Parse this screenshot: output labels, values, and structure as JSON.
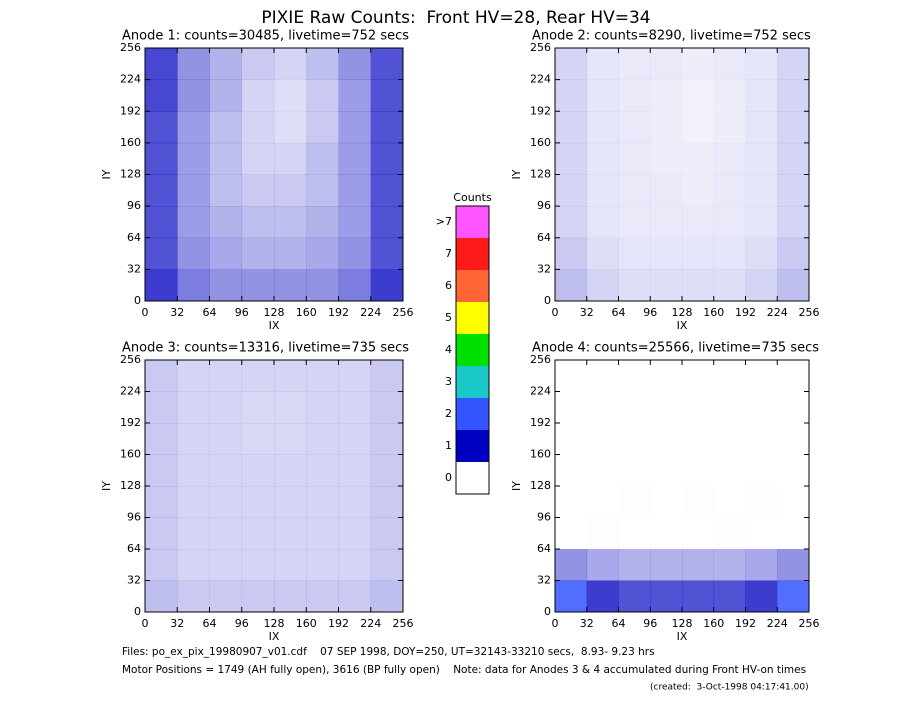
{
  "title": "PIXIE Raw Counts:  Front HV=28, Rear HV=34",
  "chart_data": [
    {
      "type": "heatmap",
      "title": "Anode 1: counts=30485, livetime=752 secs",
      "xlabel": "IX",
      "ylabel": "IY",
      "xlim": [
        0,
        256
      ],
      "ylim": [
        0,
        256
      ],
      "xticks": [
        0,
        32,
        64,
        96,
        128,
        160,
        192,
        224,
        256
      ],
      "yticks": [
        0,
        32,
        64,
        96,
        128,
        160,
        192,
        224,
        256
      ],
      "values": [
        [
          0.9,
          0.6,
          0.5,
          0.5,
          0.5,
          0.5,
          0.6,
          0.9
        ],
        [
          0.8,
          0.5,
          0.4,
          0.35,
          0.35,
          0.4,
          0.5,
          0.8
        ],
        [
          0.8,
          0.45,
          0.35,
          0.3,
          0.3,
          0.35,
          0.45,
          0.8
        ],
        [
          0.8,
          0.45,
          0.3,
          0.25,
          0.25,
          0.3,
          0.45,
          0.8
        ],
        [
          0.8,
          0.45,
          0.3,
          0.2,
          0.2,
          0.3,
          0.45,
          0.8
        ],
        [
          0.8,
          0.45,
          0.3,
          0.2,
          0.15,
          0.25,
          0.45,
          0.8
        ],
        [
          0.85,
          0.5,
          0.35,
          0.2,
          0.15,
          0.25,
          0.45,
          0.8
        ],
        [
          0.85,
          0.5,
          0.35,
          0.25,
          0.2,
          0.3,
          0.5,
          0.8
        ]
      ]
    },
    {
      "type": "heatmap",
      "title": "Anode 2: counts=8290, livetime=752 secs",
      "xlabel": "IX",
      "ylabel": "IY",
      "xlim": [
        0,
        256
      ],
      "ylim": [
        0,
        256
      ],
      "xticks": [
        0,
        32,
        64,
        96,
        128,
        160,
        192,
        224,
        256
      ],
      "yticks": [
        0,
        32,
        64,
        96,
        128,
        160,
        192,
        224,
        256
      ],
      "values": [
        [
          0.3,
          0.2,
          0.15,
          0.15,
          0.15,
          0.15,
          0.2,
          0.3
        ],
        [
          0.25,
          0.15,
          0.12,
          0.12,
          0.12,
          0.12,
          0.15,
          0.25
        ],
        [
          0.2,
          0.12,
          0.1,
          0.1,
          0.1,
          0.1,
          0.12,
          0.2
        ],
        [
          0.2,
          0.12,
          0.1,
          0.1,
          0.08,
          0.1,
          0.12,
          0.2
        ],
        [
          0.2,
          0.12,
          0.1,
          0.08,
          0.08,
          0.1,
          0.12,
          0.2
        ],
        [
          0.2,
          0.12,
          0.1,
          0.08,
          0.06,
          0.08,
          0.12,
          0.2
        ],
        [
          0.2,
          0.12,
          0.1,
          0.08,
          0.06,
          0.08,
          0.12,
          0.2
        ],
        [
          0.2,
          0.12,
          0.1,
          0.1,
          0.08,
          0.1,
          0.12,
          0.2
        ]
      ]
    },
    {
      "type": "heatmap",
      "title": "Anode 3: counts=13316, livetime=735 secs",
      "xlabel": "IX",
      "ylabel": "IY",
      "xlim": [
        0,
        256
      ],
      "ylim": [
        0,
        256
      ],
      "xticks": [
        0,
        32,
        64,
        96,
        128,
        160,
        192,
        224,
        256
      ],
      "yticks": [
        0,
        32,
        64,
        96,
        128,
        160,
        192,
        224,
        256
      ],
      "values": [
        [
          0.3,
          0.25,
          0.25,
          0.25,
          0.25,
          0.25,
          0.25,
          0.3
        ],
        [
          0.25,
          0.2,
          0.2,
          0.2,
          0.2,
          0.2,
          0.2,
          0.25
        ],
        [
          0.25,
          0.2,
          0.2,
          0.2,
          0.2,
          0.2,
          0.2,
          0.25
        ],
        [
          0.25,
          0.2,
          0.2,
          0.2,
          0.2,
          0.2,
          0.2,
          0.25
        ],
        [
          0.25,
          0.2,
          0.2,
          0.2,
          0.2,
          0.2,
          0.2,
          0.25
        ],
        [
          0.25,
          0.2,
          0.2,
          0.18,
          0.18,
          0.2,
          0.2,
          0.25
        ],
        [
          0.25,
          0.2,
          0.2,
          0.18,
          0.18,
          0.2,
          0.2,
          0.25
        ],
        [
          0.25,
          0.2,
          0.2,
          0.2,
          0.2,
          0.2,
          0.2,
          0.25
        ]
      ]
    },
    {
      "type": "heatmap",
      "title": "Anode 4: counts=25566, livetime=735 secs",
      "xlabel": "IX",
      "ylabel": "IY",
      "xlim": [
        0,
        256
      ],
      "ylim": [
        0,
        256
      ],
      "xticks": [
        0,
        32,
        64,
        96,
        128,
        160,
        192,
        224,
        256
      ],
      "yticks": [
        0,
        32,
        64,
        96,
        128,
        160,
        192,
        224,
        256
      ],
      "values": [
        [
          2.5,
          0.9,
          0.8,
          0.8,
          0.8,
          0.8,
          0.9,
          2.5
        ],
        [
          0.5,
          0.4,
          0.35,
          0.35,
          0.35,
          0.35,
          0.4,
          0.5
        ],
        [
          0,
          0.01,
          0,
          0,
          0,
          0.01,
          0,
          0
        ],
        [
          0,
          0,
          0.01,
          0,
          0.01,
          0,
          0.01,
          0
        ],
        [
          0,
          0,
          0,
          0,
          0,
          0,
          0,
          0
        ],
        [
          0,
          0,
          0,
          0,
          0,
          0,
          0,
          0
        ],
        [
          0,
          0,
          0,
          0,
          0,
          0,
          0,
          0
        ],
        [
          0,
          0,
          0,
          0,
          0,
          0,
          0,
          0
        ]
      ]
    }
  ],
  "colorbar": {
    "title": "Counts",
    "levels": [
      0,
      1,
      2,
      3,
      4,
      5,
      6,
      7
    ],
    "overflow_label": ">7",
    "colors": [
      "#ffffff",
      "#0000c0",
      "#3355ff",
      "#1ac8c8",
      "#00e000",
      "#ffff00",
      "#ff6633",
      "#ff1a1a",
      "#ff55ff"
    ]
  },
  "footer": [
    "Files: po_ex_pix_19980907_v01.cdf    07 SEP 1998, DOY=250, UT=32143-33210 secs,  8.93- 9.23 hrs",
    "Motor Positions = 1749 (AH fully open), 3616 (BP fully open)    Note: data for Anodes 3 & 4 accumulated during Front HV-on times",
    "(created:  3-Oct-1998 04:17:41.00)"
  ]
}
